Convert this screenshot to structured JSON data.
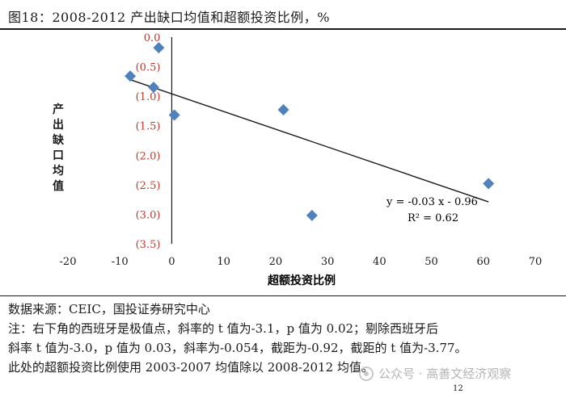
{
  "title": "图18：2008-2012 产出缺口均值和超额投资比例，%",
  "chart_data": {
    "type": "scatter",
    "xlabel": "超额投资比例",
    "ylabel": "产出缺口均值",
    "xlim": [
      -20,
      70
    ],
    "ylim": [
      -3.5,
      0
    ],
    "x_ticks": [
      "-20",
      "-10",
      "0",
      "10",
      "20",
      "30",
      "40",
      "50",
      "60",
      "70"
    ],
    "y_ticks": [
      "0.0",
      "(0.5)",
      "(1.0)",
      "(1.5)",
      "(2.0)",
      "(2.5)",
      "(3.0)",
      "(3.5)"
    ],
    "series": [
      {
        "marker_color": "#4f81bd",
        "points": [
          {
            "x": -2.5,
            "y": -0.18
          },
          {
            "x": -8,
            "y": -0.66
          },
          {
            "x": -3.5,
            "y": -0.85
          },
          {
            "x": 0.5,
            "y": -1.32
          },
          {
            "x": 21.5,
            "y": -1.23
          },
          {
            "x": 27,
            "y": -3.02
          },
          {
            "x": 61,
            "y": -2.48
          }
        ]
      }
    ],
    "trendline": {
      "x_range": [
        -8,
        61
      ],
      "slope": -0.03,
      "intercept": -0.96,
      "equation_label": "y = -0.03 x - 0.96",
      "r2_label": "R² = 0.62"
    },
    "grid": false,
    "axis_label_color": "#c0392b"
  },
  "notes": {
    "source": "数据来源：CEIC，国投证券研究中心",
    "line1": "注：右下角的西班牙是极值点，斜率的 t 值为-3.1，p 值为 0.02；剔除西班牙后",
    "line2": "斜率 t 值为-3.0，p 值为 0.03，斜率为-0.054，截距为-0.92，截距的 t 值为-3.77。",
    "line3": "此处的超额投资比例使用 2003-2007 均值除以 2008-2012 均值。"
  },
  "page_number": "12",
  "watermark": "公众号 · 高善文经济观察"
}
